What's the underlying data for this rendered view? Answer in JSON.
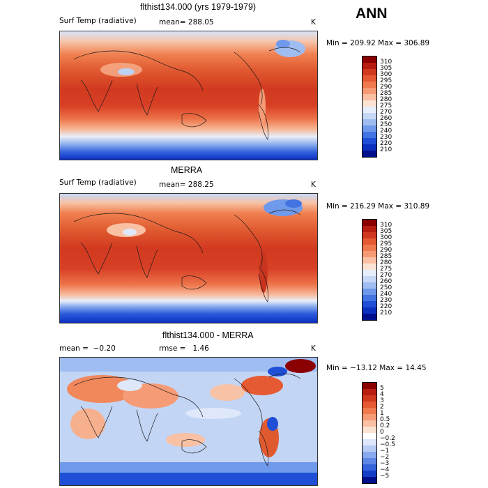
{
  "season": "ANN",
  "panels": [
    {
      "title": "flthist134.000 (yrs 1979-1979)",
      "left_label": "Surf Temp (radiative)",
      "mean_label": "mean=",
      "mean": "288.05",
      "rmse_label": "",
      "rmse": "",
      "units": "K",
      "minmax": "Min = 209.92 Max = 306.89",
      "levels": [
        "310",
        "305",
        "300",
        "295",
        "290",
        "285",
        "280",
        "275",
        "270",
        "260",
        "250",
        "240",
        "230",
        "220",
        "210"
      ],
      "colors": [
        "#8b0000",
        "#b81d12",
        "#d03820",
        "#e55a32",
        "#f07a50",
        "#f59b75",
        "#f9c0a3",
        "#fbe3d3",
        "#e6eefb",
        "#c6d8f6",
        "#9fbdf0",
        "#6f99ea",
        "#4474e2",
        "#1f4fd6",
        "#0b2fbf",
        "#000f8c"
      ]
    },
    {
      "title": "MERRA",
      "left_label": "Surf Temp (radiative)",
      "mean_label": "mean=",
      "mean": "288.25",
      "rmse_label": "",
      "rmse": "",
      "units": "K",
      "minmax": "Min = 216.29 Max = 310.89",
      "levels": [
        "310",
        "305",
        "300",
        "295",
        "290",
        "285",
        "280",
        "275",
        "270",
        "260",
        "250",
        "240",
        "230",
        "220",
        "210"
      ],
      "colors": [
        "#8b0000",
        "#b81d12",
        "#d03820",
        "#e55a32",
        "#f07a50",
        "#f59b75",
        "#f9c0a3",
        "#fbe3d3",
        "#e6eefb",
        "#c6d8f6",
        "#9fbdf0",
        "#6f99ea",
        "#4474e2",
        "#1f4fd6",
        "#0b2fbf",
        "#000f8c"
      ]
    },
    {
      "title": "flthist134.000 - MERRA",
      "left_label": "mean =",
      "mean_label": "",
      "mean": "−0.20",
      "rmse_label": "rmse =",
      "rmse": "1.46",
      "units": "K",
      "minmax": "Min = −13.12 Max =  14.45",
      "levels": [
        "5",
        "4",
        "3",
        "2",
        "1",
        "0.5",
        "0.2",
        "0",
        "−0.2",
        "−0.5",
        "−1",
        "−2",
        "−3",
        "−4",
        "−5"
      ],
      "colors": [
        "#8b0000",
        "#b81d12",
        "#d03820",
        "#e55a32",
        "#f07a50",
        "#f59b75",
        "#f9c0a3",
        "#fbe3d3",
        "#ffffff",
        "#dfe8fa",
        "#b7cbf4",
        "#8aaaee",
        "#5f87e6",
        "#3563dc",
        "#123ec8",
        "#000f8c"
      ]
    }
  ]
}
